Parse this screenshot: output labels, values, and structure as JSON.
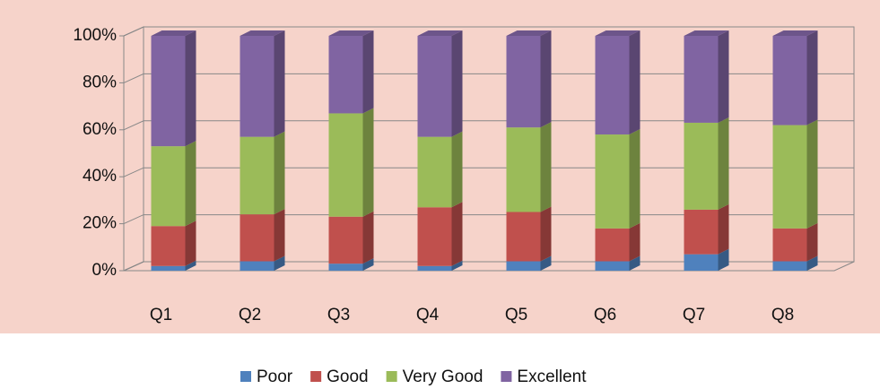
{
  "chart_data": {
    "type": "stacked_bar_3d",
    "categories": [
      "Q1",
      "Q2",
      "Q3",
      "Q4",
      "Q5",
      "Q6",
      "Q7",
      "Q8"
    ],
    "series": [
      {
        "name": "Poor",
        "color": "#4f81bd",
        "values": [
          2,
          4,
          3,
          2,
          4,
          4,
          7,
          4
        ]
      },
      {
        "name": "Good",
        "color": "#c0504d",
        "values": [
          17,
          20,
          20,
          25,
          21,
          14,
          19,
          14
        ]
      },
      {
        "name": "Very Good",
        "color": "#9bbb59",
        "values": [
          34,
          33,
          44,
          30,
          36,
          40,
          37,
          44
        ]
      },
      {
        "name": "Excellent",
        "color": "#8064a2",
        "values": [
          47,
          43,
          33,
          43,
          39,
          42,
          37,
          38
        ]
      }
    ],
    "ylim": [
      0,
      100
    ],
    "yticks": [
      {
        "value": 0,
        "label": "0%"
      },
      {
        "value": 20,
        "label": "20%"
      },
      {
        "value": 40,
        "label": "40%"
      },
      {
        "value": 60,
        "label": "60%"
      },
      {
        "value": 80,
        "label": "80%"
      },
      {
        "value": 100,
        "label": "100%"
      }
    ],
    "grid": true,
    "legend": "bottom"
  }
}
